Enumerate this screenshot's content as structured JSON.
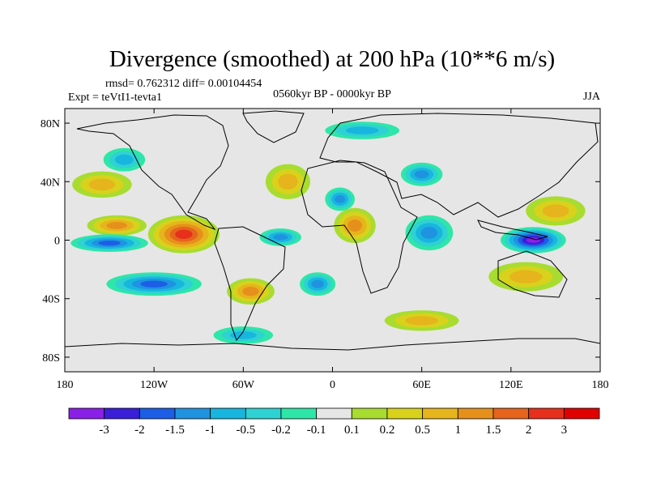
{
  "chart_data": {
    "type": "heatmap",
    "title": "Divergence (smoothed) at 200 hPa (10**6 m/s)",
    "stats_text": "rmsd= 0.762312 diff= 0.00104454",
    "experiment": "Expt = teVtI1-tevta1",
    "period": "0560kyr BP - 0000kyr BP",
    "season": "JJA",
    "xlim": [
      -180,
      180
    ],
    "ylim": [
      -90,
      90
    ],
    "x_ticks": [
      {
        "value": -180,
        "label": "180"
      },
      {
        "value": -120,
        "label": "120W"
      },
      {
        "value": -60,
        "label": "60W"
      },
      {
        "value": 0,
        "label": "0"
      },
      {
        "value": 60,
        "label": "60E"
      },
      {
        "value": 120,
        "label": "120E"
      },
      {
        "value": 180,
        "label": "180"
      }
    ],
    "y_ticks": [
      {
        "value": 80,
        "label": "80N"
      },
      {
        "value": 40,
        "label": "40N"
      },
      {
        "value": 0,
        "label": "0"
      },
      {
        "value": -40,
        "label": "40S"
      },
      {
        "value": -80,
        "label": "80S"
      }
    ],
    "colorbar": {
      "levels": [
        "-3",
        "-2",
        "-1.5",
        "-1",
        "-0.5",
        "-0.2",
        "-0.1",
        "0.1",
        "0.2",
        "0.5",
        "1",
        "1.5",
        "2",
        "3"
      ],
      "colors": [
        "#8a1fe6",
        "#3a1fd8",
        "#1c5ee6",
        "#1f93e0",
        "#17b6de",
        "#2ed2d2",
        "#2ee6a8",
        "#e6e6e6",
        "#a8dc30",
        "#d8d21c",
        "#e6b41c",
        "#e6901c",
        "#e6641c",
        "#e6301c",
        "#e00000"
      ]
    },
    "features": [
      {
        "name": "east-pacific-positive",
        "lon": -100,
        "lat": 4,
        "rx": 24,
        "ry": 13,
        "value": 3
      },
      {
        "name": "central-pacific-positive",
        "lon": -145,
        "lat": 10,
        "rx": 20,
        "ry": 7,
        "value": 1.5
      },
      {
        "name": "central-pacific-negative",
        "lon": -150,
        "lat": -2,
        "rx": 26,
        "ry": 6,
        "value": -1.5
      },
      {
        "name": "south-pacific-negative",
        "lon": -120,
        "lat": -30,
        "rx": 32,
        "ry": 8,
        "value": -1.5
      },
      {
        "name": "north-pacific-positive",
        "lon": -155,
        "lat": 38,
        "rx": 20,
        "ry": 9,
        "value": 1
      },
      {
        "name": "north-pacific-negative",
        "lon": -140,
        "lat": 55,
        "rx": 14,
        "ry": 8,
        "value": -0.5
      },
      {
        "name": "south-america-positive",
        "lon": -55,
        "lat": -35,
        "rx": 16,
        "ry": 9,
        "value": 1.5
      },
      {
        "name": "atlantic-negative",
        "lon": -35,
        "lat": 2,
        "rx": 14,
        "ry": 6,
        "value": -1
      },
      {
        "name": "north-atlantic-positive",
        "lon": -30,
        "lat": 40,
        "rx": 15,
        "ry": 12,
        "value": 1
      },
      {
        "name": "south-atlantic-negative",
        "lon": -10,
        "lat": -30,
        "rx": 12,
        "ry": 8,
        "value": -1
      },
      {
        "name": "africa-positive",
        "lon": 15,
        "lat": 10,
        "rx": 14,
        "ry": 12,
        "value": 1.5
      },
      {
        "name": "sahara-negative",
        "lon": 5,
        "lat": 28,
        "rx": 10,
        "ry": 8,
        "value": -1
      },
      {
        "name": "indian-ocean-negative",
        "lon": 65,
        "lat": 5,
        "rx": 16,
        "ry": 12,
        "value": -1
      },
      {
        "name": "asia-negative",
        "lon": 60,
        "lat": 45,
        "rx": 14,
        "ry": 8,
        "value": -1
      },
      {
        "name": "maritime-continent-negative",
        "lon": 135,
        "lat": 0,
        "rx": 22,
        "ry": 9,
        "value": -3
      },
      {
        "name": "australia-positive",
        "lon": 130,
        "lat": -25,
        "rx": 25,
        "ry": 10,
        "value": 1
      },
      {
        "name": "west-pacific-positive",
        "lon": 150,
        "lat": 20,
        "rx": 20,
        "ry": 10,
        "value": 1
      },
      {
        "name": "arctic-negative",
        "lon": 20,
        "lat": 75,
        "rx": 25,
        "ry": 6,
        "value": -0.5
      },
      {
        "name": "southern-ocean-positive",
        "lon": 60,
        "lat": -55,
        "rx": 25,
        "ry": 7,
        "value": 1
      },
      {
        "name": "antarctic-negative",
        "lon": -60,
        "lat": -65,
        "rx": 20,
        "ry": 6,
        "value": -0.5
      }
    ]
  }
}
